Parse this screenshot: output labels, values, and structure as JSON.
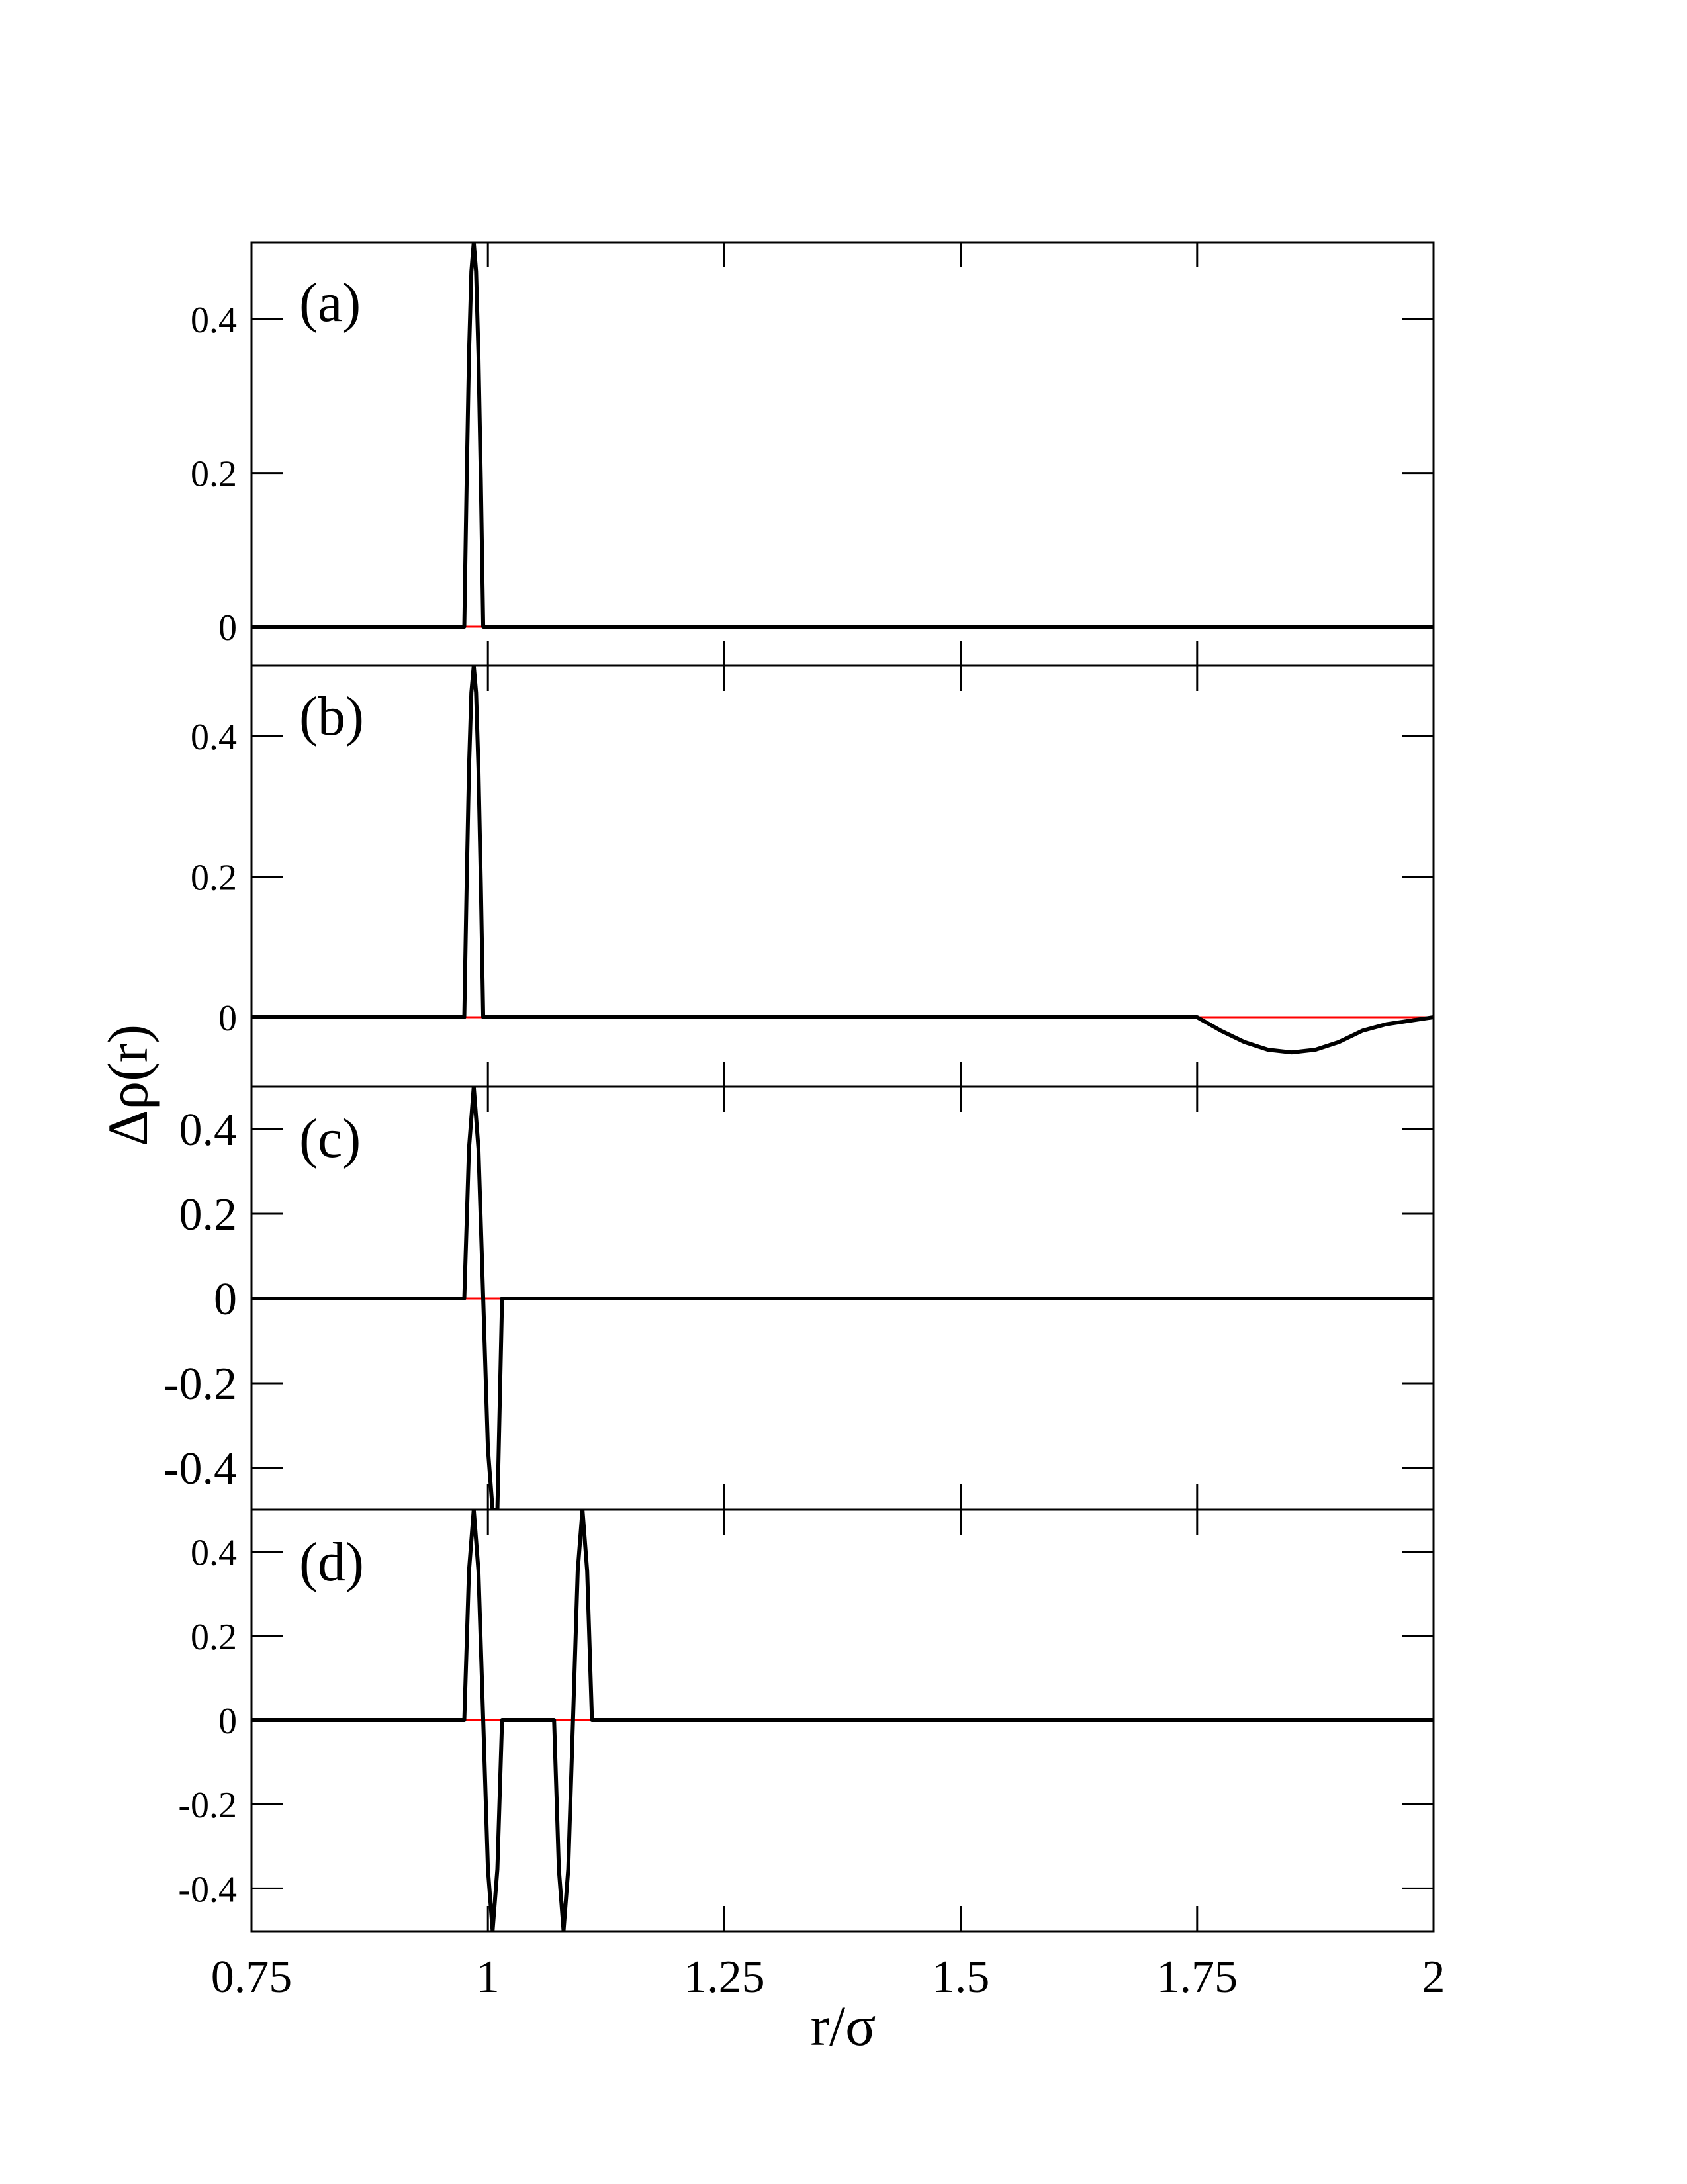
{
  "chart_data": {
    "type": "line",
    "layout": "4 vertically stacked panels sharing x axis",
    "xlabel": "r/σ",
    "ylabel": "Δρ(r)",
    "xlim": [
      0.75,
      2.0
    ],
    "x_ticks": [
      "0.75",
      "1",
      "1.25",
      "1.5",
      "1.75",
      "2"
    ],
    "grid": false,
    "colors": {
      "curve": "#000000",
      "baseline": "#ff0000",
      "axes": "#000000"
    },
    "panels": [
      {
        "label": "(a)",
        "ylim": [
          -0.05,
          0.5
        ],
        "y_ticks": [
          "0.4",
          "0.2",
          "0"
        ],
        "series": [
          {
            "color": "#000000",
            "x": [
              0.75,
              0.975,
              0.9775,
              0.98,
              0.9825,
              0.985,
              0.9875,
              0.99,
              0.9925,
              0.995,
              0.9975,
              1.0,
              2.0
            ],
            "y": [
              0,
              0,
              0.191,
              0.354,
              0.462,
              0.5,
              0.462,
              0.354,
              0.191,
              0,
              0,
              0,
              0
            ]
          },
          {
            "color": "#ff0000",
            "x": [
              0.975,
              1.0
            ],
            "y": [
              0,
              0
            ]
          }
        ]
      },
      {
        "label": "(b)",
        "ylim": [
          -0.1,
          0.5
        ],
        "y_ticks": [
          "0.4",
          "0.2",
          "0"
        ],
        "series": [
          {
            "color": "#000000",
            "x": [
              0.75,
              0.975,
              0.9775,
              0.98,
              0.9825,
              0.985,
              0.9875,
              0.99,
              0.9925,
              0.995,
              0.9975,
              1.0,
              1.75,
              1.775,
              1.8,
              1.825,
              1.85,
              1.875,
              1.9,
              1.925,
              1.95,
              1.975,
              2.0
            ],
            "y": [
              0,
              0,
              0.191,
              0.354,
              0.462,
              0.5,
              0.462,
              0.354,
              0.191,
              0,
              0,
              0,
              0,
              -0.0191,
              -0.0353,
              -0.0462,
              -0.05,
              -0.0462,
              -0.0353,
              -0.0191,
              -0.01,
              -0.005,
              0
            ]
          },
          {
            "color": "#ff0000",
            "x": [
              0.975,
              1.0
            ],
            "y": [
              0,
              0
            ]
          },
          {
            "color": "#ff0000",
            "x": [
              1.75,
              2.0
            ],
            "y": [
              0,
              0
            ]
          }
        ]
      },
      {
        "label": "(c)",
        "ylim": [
          -0.5,
          0.5
        ],
        "y_ticks": [
          "0.4",
          "0.2",
          "0",
          "-0.2",
          "-0.4"
        ],
        "series": [
          {
            "color": "#000000",
            "x": [
              0.75,
              0.975,
              0.98,
              0.985,
              0.99,
              0.995,
              1.0,
              1.005,
              1.01,
              1.015,
              1.02,
              2.0
            ],
            "y": [
              0,
              0,
              0.354,
              0.5,
              0.354,
              0,
              -0.354,
              -0.5,
              -0.5,
              0,
              0,
              0
            ]
          },
          {
            "color": "#ff0000",
            "x": [
              0.975,
              1.02
            ],
            "y": [
              0,
              0
            ]
          }
        ]
      },
      {
        "label": "(d)",
        "ylim": [
          -0.5,
          0.5
        ],
        "y_ticks": [
          "0.4",
          "0.2",
          "0",
          "-0.2",
          "-0.4"
        ],
        "series": [
          {
            "color": "#000000",
            "x": [
              0.75,
              0.975,
              0.98,
              0.985,
              0.99,
              0.995,
              1.0,
              1.005,
              1.01,
              1.015,
              1.02,
              1.07,
              1.075,
              1.08,
              1.085,
              1.09,
              1.095,
              1.1,
              1.105,
              1.11,
              1.115,
              1.12,
              2.0
            ],
            "y": [
              0,
              0,
              0.354,
              0.5,
              0.354,
              0,
              -0.354,
              -0.5,
              -0.354,
              0,
              0,
              0,
              -0.354,
              -0.5,
              -0.354,
              0,
              0.354,
              0.5,
              0.354,
              0,
              0,
              0,
              0
            ]
          },
          {
            "color": "#ff0000",
            "x": [
              0.975,
              1.12
            ],
            "y": [
              0,
              0
            ]
          }
        ]
      }
    ]
  }
}
